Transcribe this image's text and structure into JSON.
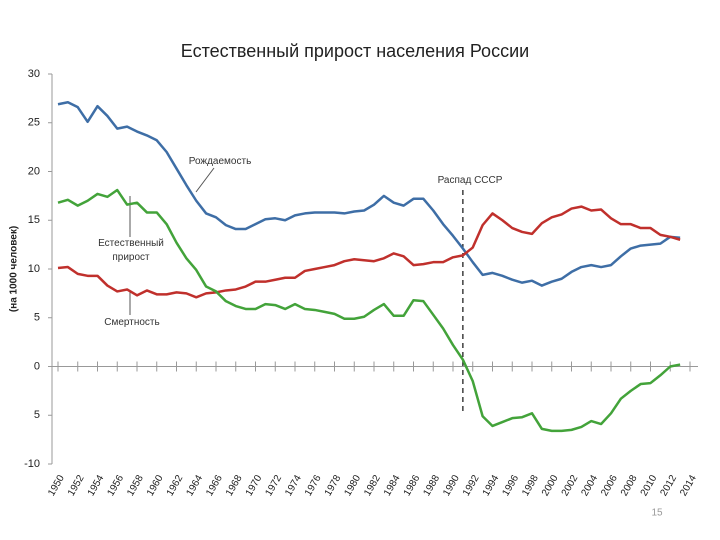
{
  "chart_data": {
    "type": "line",
    "title": "Естественный прирост населения России",
    "y_label": "(на 1000 человек)",
    "x": [
      1950,
      1951,
      1952,
      1953,
      1954,
      1955,
      1956,
      1957,
      1958,
      1959,
      1960,
      1961,
      1962,
      1963,
      1964,
      1965,
      1966,
      1967,
      1968,
      1969,
      1970,
      1971,
      1972,
      1973,
      1974,
      1975,
      1976,
      1977,
      1978,
      1979,
      1980,
      1981,
      1982,
      1983,
      1984,
      1985,
      1986,
      1987,
      1988,
      1989,
      1990,
      1991,
      1992,
      1993,
      1994,
      1995,
      1996,
      1997,
      1998,
      1999,
      2000,
      2001,
      2002,
      2003,
      2004,
      2005,
      2006,
      2007,
      2008,
      2009,
      2010,
      2011,
      2012,
      2013
    ],
    "series": [
      {
        "name": "Рождаемость",
        "color": "#3e6ea6",
        "values": [
          26.9,
          27.1,
          26.6,
          25.1,
          26.7,
          25.7,
          24.4,
          24.6,
          24.1,
          23.7,
          23.2,
          22.0,
          20.3,
          18.6,
          17.0,
          15.7,
          15.3,
          14.5,
          14.1,
          14.1,
          14.6,
          15.1,
          15.2,
          15.0,
          15.5,
          15.7,
          15.8,
          15.8,
          15.8,
          15.7,
          15.9,
          16.0,
          16.6,
          17.5,
          16.8,
          16.5,
          17.2,
          17.2,
          16.0,
          14.6,
          13.4,
          12.1,
          10.7,
          9.4,
          9.6,
          9.3,
          8.9,
          8.6,
          8.8,
          8.3,
          8.7,
          9.0,
          9.7,
          10.2,
          10.4,
          10.2,
          10.4,
          11.3,
          12.1,
          12.4,
          12.5,
          12.6,
          13.3,
          13.2
        ]
      },
      {
        "name": "Смертность",
        "color": "#c0302c",
        "values": [
          10.1,
          10.2,
          9.5,
          9.3,
          9.3,
          8.3,
          7.7,
          7.9,
          7.3,
          7.8,
          7.4,
          7.4,
          7.6,
          7.5,
          7.1,
          7.5,
          7.6,
          7.8,
          7.9,
          8.2,
          8.7,
          8.7,
          8.9,
          9.1,
          9.1,
          9.8,
          10.0,
          10.2,
          10.4,
          10.8,
          11.0,
          10.9,
          10.8,
          11.1,
          11.6,
          11.3,
          10.4,
          10.5,
          10.7,
          10.7,
          11.2,
          11.4,
          12.2,
          14.5,
          15.7,
          15.0,
          14.2,
          13.8,
          13.6,
          14.7,
          15.3,
          15.6,
          16.2,
          16.4,
          16.0,
          16.1,
          15.2,
          14.6,
          14.6,
          14.2,
          14.2,
          13.5,
          13.3,
          13.0
        ]
      },
      {
        "name": "Естественный прирост",
        "color": "#43a33a",
        "values": [
          16.8,
          17.1,
          16.5,
          17.0,
          17.7,
          17.4,
          18.1,
          16.6,
          16.8,
          15.8,
          15.8,
          14.6,
          12.7,
          11.1,
          9.9,
          8.2,
          7.7,
          6.7,
          6.2,
          5.9,
          5.9,
          6.4,
          6.3,
          5.9,
          6.4,
          5.9,
          5.8,
          5.6,
          5.4,
          4.9,
          4.9,
          5.1,
          5.8,
          6.4,
          5.2,
          5.2,
          6.8,
          6.7,
          5.3,
          3.9,
          2.2,
          0.7,
          -1.5,
          -5.1,
          -6.1,
          -5.7,
          -5.3,
          -5.2,
          -4.8,
          -6.4,
          -6.6,
          -6.6,
          -6.5,
          -6.2,
          -5.6,
          -5.9,
          -4.8,
          -3.3,
          -2.5,
          -1.8,
          -1.7,
          -0.9,
          0.0,
          0.2
        ]
      }
    ],
    "event": {
      "x": 1991,
      "label": "Распад СССР"
    },
    "xlim": [
      1950,
      2014
    ],
    "xticks": [
      1950,
      1952,
      1954,
      1956,
      1958,
      1960,
      1962,
      1964,
      1966,
      1968,
      1970,
      1972,
      1974,
      1976,
      1978,
      1980,
      1982,
      1984,
      1986,
      1988,
      1990,
      1992,
      1994,
      1996,
      1998,
      2000,
      2002,
      2004,
      2006,
      2008,
      2010,
      2012,
      2014
    ],
    "ylim": [
      -10,
      30
    ],
    "yticks": [
      30,
      25,
      20,
      15,
      10,
      5,
      0,
      {
        "value": -5,
        "label": "5"
      },
      -10
    ]
  },
  "page_number": "15"
}
